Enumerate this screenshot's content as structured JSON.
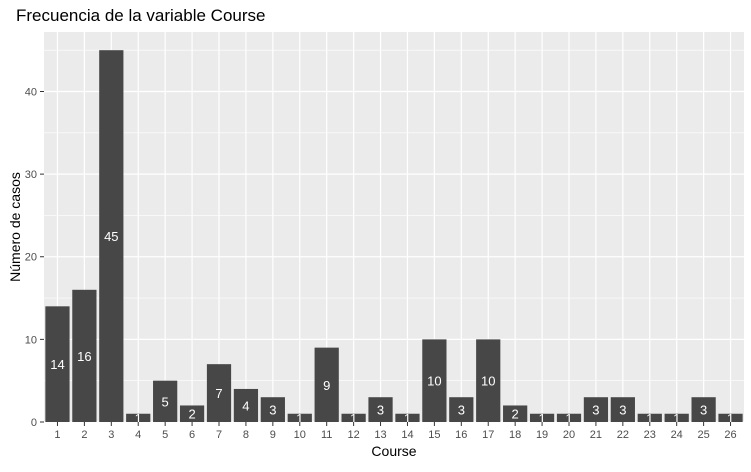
{
  "chart_data": {
    "type": "bar",
    "title": "Frecuencia de la variable Course",
    "xlabel": "Course",
    "ylabel": "Número de casos",
    "categories": [
      "1",
      "2",
      "3",
      "4",
      "5",
      "6",
      "7",
      "8",
      "9",
      "10",
      "11",
      "12",
      "13",
      "14",
      "15",
      "16",
      "17",
      "18",
      "19",
      "20",
      "21",
      "22",
      "23",
      "24",
      "25",
      "26"
    ],
    "values": [
      14,
      16,
      45,
      1,
      5,
      2,
      7,
      4,
      3,
      1,
      9,
      1,
      3,
      1,
      10,
      3,
      10,
      2,
      1,
      1,
      3,
      3,
      1,
      1,
      3,
      1
    ],
    "ylim": [
      0,
      47.2
    ],
    "yticks": [
      0,
      10,
      20,
      30,
      40
    ],
    "grid": true,
    "legend": "none",
    "colors": {
      "bar": "#474747",
      "panel": "#EBEBEB",
      "grid_major": "#FFFFFF",
      "label": "#FFFFFF"
    }
  }
}
